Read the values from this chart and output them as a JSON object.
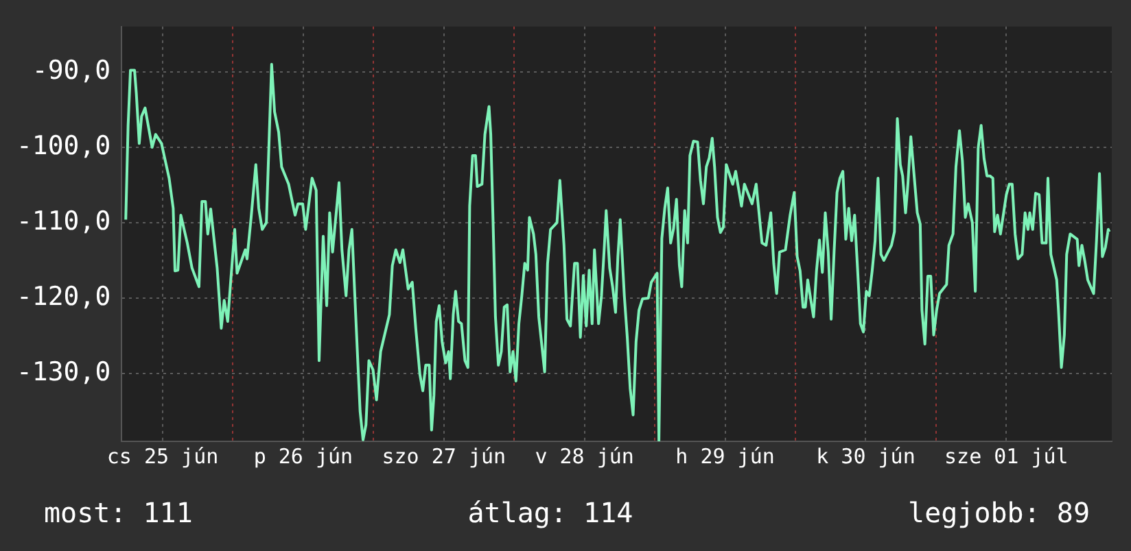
{
  "chart_data": {
    "type": "line",
    "xlim": [
      "--06-25T05:00",
      "--07-02T06:00"
    ],
    "ylim": [
      -139,
      -84
    ],
    "xticks": [
      {
        "value": "--06-25T12:00",
        "label": "cs 25 jún"
      },
      {
        "value": "--06-26",
        "label": null
      },
      {
        "value": "--06-26T12:00",
        "label": "p 26 jún"
      },
      {
        "value": "--06-27",
        "label": null
      },
      {
        "value": "--06-27T12:00",
        "label": "szo 27 jún"
      },
      {
        "value": "--06-28",
        "label": null
      },
      {
        "value": "--06-28T12:00",
        "label": "v 28 jún"
      },
      {
        "value": "--06-29",
        "label": null
      },
      {
        "value": "--06-29T12:00",
        "label": "h 29 jún"
      },
      {
        "value": "--06-30",
        "label": null
      },
      {
        "value": "--06-30T12:00",
        "label": "k 30 jún"
      },
      {
        "value": "--07-01",
        "label": null
      },
      {
        "value": "--07-01T12:00",
        "label": "sze 01 júl"
      }
    ],
    "yticks": [
      {
        "value": -130,
        "label": "-130,0"
      },
      {
        "value": -120,
        "label": "-120,0"
      },
      {
        "value": -110,
        "label": "-110,0"
      },
      {
        "value": -100,
        "label": "-100,0"
      },
      {
        "value": -90,
        "label": "-90,0"
      }
    ],
    "grid": true,
    "legend": false,
    "marker": "none",
    "line_style": "solid",
    "annotations": [
      "most: 111",
      "átlag: 114",
      "legjobb: 89"
    ],
    "series": [
      {
        "color": "#7ef2b8",
        "x": [
          "--06-25T05:42",
          "--06-25T06:06",
          "--06-25T06:30",
          "--06-25T07:12",
          "--06-25T07:30",
          "--06-25T08:00",
          "--06-25T08:24",
          "--06-25T09:00",
          "--06-25T10:12",
          "--06-25T10:48",
          "--06-25T11:48",
          "--06-25T13:06",
          "--06-25T13:48",
          "--06-25T14:06",
          "--06-25T14:36",
          "--06-25T15:06",
          "--06-25T16:12",
          "--06-25T17:00",
          "--06-25T18:12",
          "--06-25T18:42",
          "--06-25T19:18",
          "--06-25T19:42",
          "--06-25T20:12",
          "--06-25T21:18",
          "--06-25T22:00",
          "--06-25T22:30",
          "--06-25T23:06",
          "--06-25T23:36",
          "--06-26T00:18",
          "--06-26T00:42",
          "--06-26T02:06",
          "--06-26T02:24",
          "--06-26T03:06",
          "--06-26T03:54",
          "--06-26T04:24",
          "--06-26T05:00",
          "--06-26T05:42",
          "--06-26T06:12",
          "--06-26T06:36",
          "--06-26T07:06",
          "--06-26T07:48",
          "--06-26T08:18",
          "--06-26T09:30",
          "--06-26T10:36",
          "--06-26T11:06",
          "--06-26T11:54",
          "--06-26T12:24",
          "--06-26T13:30",
          "--06-26T14:12",
          "--06-26T14:42",
          "--06-26T15:24",
          "--06-26T16:00",
          "--06-26T16:30",
          "--06-26T17:00",
          "--06-26T18:06",
          "--06-26T18:36",
          "--06-26T19:18",
          "--06-26T19:48",
          "--06-26T20:18",
          "--06-26T20:48",
          "--06-26T21:18",
          "--06-26T21:42",
          "--06-26T22:12",
          "--06-26T22:42",
          "--06-26T23:12",
          "--06-26T23:54",
          "--06-27T00:30",
          "--06-27T01:12",
          "--06-27T02:42",
          "--06-27T03:12",
          "--06-27T03:48",
          "--06-27T04:30",
          "--06-27T05:00",
          "--06-27T05:54",
          "--06-27T06:36",
          "--06-27T07:12",
          "--06-27T07:54",
          "--06-27T08:24",
          "--06-27T08:54",
          "--06-27T09:30",
          "--06-27T09:54",
          "--06-27T10:18",
          "--06-27T10:42",
          "--06-27T11:12",
          "--06-27T11:42",
          "--06-27T12:18",
          "--06-27T12:48",
          "--06-27T13:06",
          "--06-27T13:36",
          "--06-27T14:00",
          "--06-27T14:30",
          "--06-27T15:00",
          "--06-27T15:36",
          "--06-27T16:06",
          "--06-27T16:24",
          "--06-27T16:54",
          "--06-27T17:24",
          "--06-27T17:42",
          "--06-27T18:30",
          "--06-27T19:00",
          "--06-27T19:42",
          "--06-27T20:00",
          "--06-27T20:24",
          "--06-27T20:48",
          "--06-27T21:18",
          "--06-27T21:48",
          "--06-27T22:18",
          "--06-27T22:48",
          "--06-27T23:18",
          "--06-27T23:48",
          "--06-28T00:18",
          "--06-28T00:48",
          "--06-28T01:18",
          "--06-28T01:48",
          "--06-28T02:18",
          "--06-28T02:36",
          "--06-28T03:18",
          "--06-28T03:42",
          "--06-28T04:12",
          "--06-28T05:12",
          "--06-28T05:42",
          "--06-28T06:12",
          "--06-28T07:18",
          "--06-28T07:48",
          "--06-28T08:30",
          "--06-28T09:00",
          "--06-28T09:36",
          "--06-28T10:18",
          "--06-28T10:48",
          "--06-28T11:18",
          "--06-28T11:48",
          "--06-28T12:18",
          "--06-28T12:48",
          "--06-28T13:18",
          "--06-28T13:42",
          "--06-28T14:24",
          "--06-28T14:54",
          "--06-28T15:24",
          "--06-28T15:42",
          "--06-28T16:18",
          "--06-28T16:48",
          "--06-28T17:18",
          "--06-28T17:42",
          "--06-28T18:06",
          "--06-28T18:48",
          "--06-28T19:18",
          "--06-28T19:48",
          "--06-28T20:18",
          "--06-28T20:48",
          "--06-28T21:18",
          "--06-28T21:54",
          "--06-28T22:54",
          "--06-28T23:24",
          "--06-29T00:24",
          "--06-29T00:42",
          "--06-29T01:12",
          "--06-29T01:42",
          "--06-29T02:12",
          "--06-29T02:42",
          "--06-29T03:12",
          "--06-29T03:42",
          "--06-29T04:12",
          "--06-29T04:36",
          "--06-29T05:06",
          "--06-29T05:36",
          "--06-29T06:00",
          "--06-29T06:36",
          "--06-29T07:18",
          "--06-29T07:48",
          "--06-29T08:18",
          "--06-29T08:48",
          "--06-29T09:18",
          "--06-29T09:48",
          "--06-29T10:12",
          "--06-29T10:42",
          "--06-29T11:12",
          "--06-29T11:42",
          "--06-29T12:12",
          "--06-29T13:18",
          "--06-29T13:48",
          "--06-29T14:48",
          "--06-29T15:18",
          "--06-29T16:36",
          "--06-29T17:18",
          "--06-29T18:18",
          "--06-29T19:00",
          "--06-29T19:48",
          "--06-29T20:18",
          "--06-29T20:48",
          "--06-29T21:18",
          "--06-29T22:18",
          "--06-29T23:06",
          "--06-29T23:48",
          "--06-30T00:18",
          "--06-30T00:48",
          "--06-30T01:18",
          "--06-30T01:42",
          "--06-30T02:06",
          "--06-30T02:36",
          "--06-30T03:06",
          "--06-30T03:36",
          "--06-30T04:06",
          "--06-30T04:36",
          "--06-30T05:06",
          "--06-30T05:36",
          "--06-30T06:06",
          "--06-30T06:36",
          "--06-30T07:06",
          "--06-30T07:36",
          "--06-30T08:06",
          "--06-30T08:36",
          "--06-30T09:06",
          "--06-30T09:36",
          "--06-30T10:06",
          "--06-30T10:36",
          "--06-30T11:06",
          "--06-30T11:36",
          "--06-30T12:06",
          "--06-30T12:36",
          "--06-30T13:06",
          "--06-30T13:36",
          "--06-30T14:06",
          "--06-30T14:36",
          "--06-30T15:06",
          "--06-30T16:24",
          "--06-30T16:54",
          "--06-30T17:24",
          "--06-30T17:54",
          "--06-30T18:18",
          "--06-30T18:48",
          "--06-30T19:12",
          "--06-30T19:42",
          "--06-30T20:18",
          "--06-30T20:48",
          "--06-30T21:18",
          "--06-30T21:36",
          "--06-30T22:06",
          "--06-30T22:36",
          "--06-30T23:06",
          "--06-30T23:36",
          "--07-01T00:06",
          "--07-01T00:36",
          "--07-01T01:48",
          "--07-01T02:12",
          "--07-01T02:54",
          "--07-01T03:24",
          "--07-01T04:00",
          "--07-01T04:30",
          "--07-01T05:00",
          "--07-01T05:30",
          "--07-01T06:12",
          "--07-01T06:42",
          "--07-01T07:12",
          "--07-01T07:42",
          "--07-01T08:12",
          "--07-01T08:42",
          "--07-01T09:12",
          "--07-01T09:42",
          "--07-01T10:00",
          "--07-01T10:30",
          "--07-01T11:00",
          "--07-01T12:00",
          "--07-01T12:30",
          "--07-01T13:00",
          "--07-01T13:30",
          "--07-01T14:00",
          "--07-01T14:42",
          "--07-01T15:12",
          "--07-01T15:42",
          "--07-01T16:00",
          "--07-01T16:30",
          "--07-01T17:00",
          "--07-01T17:36",
          "--07-01T18:06",
          "--07-01T18:48",
          "--07-01T19:06",
          "--07-01T19:36",
          "--07-01T20:36",
          "--07-01T20:54",
          "--07-01T21:24",
          "--07-01T21:54",
          "--07-01T22:18",
          "--07-01T22:54",
          "--07-02T00:06",
          "--07-02T00:24",
          "--07-02T00:54",
          "--07-02T01:24",
          "--07-02T01:54",
          "--07-02T02:54",
          "--07-02T03:24",
          "--07-02T03:54",
          "--07-02T04:24",
          "--07-02T04:54",
          "--07-02T05:24",
          "--07-02T05:36"
        ],
        "values": [
          -109.6,
          -97.1,
          -89.8,
          -89.8,
          -92.8,
          -99.5,
          -95.9,
          -94.8,
          -100,
          -98.3,
          -99.5,
          -104.1,
          -108.1,
          -116.4,
          -116.3,
          -109,
          -112.7,
          -116,
          -118.5,
          -107.2,
          -107.2,
          -111.5,
          -108.2,
          -116,
          -124,
          -120.3,
          -123.1,
          -117.9,
          -110.9,
          -116.7,
          -113.6,
          -114.8,
          -109.3,
          -102.3,
          -108.1,
          -110.9,
          -110,
          -98.3,
          -89,
          -95.3,
          -98,
          -102.6,
          -104.9,
          -109,
          -107.5,
          -107.5,
          -110.9,
          -104.1,
          -105.7,
          -128.3,
          -111.8,
          -121,
          -108.7,
          -113.9,
          -104.7,
          -113.6,
          -119.7,
          -113.6,
          -110.9,
          -119.7,
          -128.3,
          -135,
          -138.8,
          -136.8,
          -128.3,
          -129.5,
          -133.5,
          -127.1,
          -122.2,
          -115.7,
          -113.6,
          -115.3,
          -113.6,
          -118.8,
          -117.9,
          -124,
          -130.1,
          -132.3,
          -128.9,
          -128.9,
          -137.5,
          -132.9,
          -123.1,
          -121,
          -125.8,
          -128.6,
          -127.1,
          -130.7,
          -122.2,
          -119.1,
          -123.1,
          -123.4,
          -128.3,
          -129.2,
          -107.8,
          -101.1,
          -101.1,
          -105.2,
          -104.9,
          -98.3,
          -94.6,
          -98.3,
          -110,
          -122.5,
          -128.9,
          -127.1,
          -121.2,
          -120.9,
          -129.8,
          -127.1,
          -131,
          -123.4,
          -119.7,
          -115.4,
          -116.3,
          -109.3,
          -111.5,
          -114.2,
          -122.5,
          -129.8,
          -115.4,
          -110.9,
          -110,
          -104.4,
          -113,
          -122.8,
          -123.7,
          -115.4,
          -115.4,
          -125.2,
          -117,
          -123.7,
          -116.3,
          -123.4,
          -113.6,
          -123.4,
          -119.7,
          -113,
          -108.4,
          -116,
          -118.5,
          -121.9,
          -114.5,
          -109.6,
          -119.7,
          -125.2,
          -132,
          -135.5,
          -125.8,
          -121.6,
          -120.1,
          -120,
          -117.9,
          -116.7,
          -138.9,
          -112.1,
          -108.1,
          -105.4,
          -112.7,
          -110.8,
          -106.9,
          -115.7,
          -118.5,
          -108.4,
          -112.7,
          -101.1,
          -99.2,
          -99.3,
          -104.4,
          -107.5,
          -102.6,
          -101.4,
          -98.8,
          -102.6,
          -109.3,
          -111.3,
          -110.6,
          -102.3,
          -104.9,
          -103.2,
          -107.8,
          -104.9,
          -107.5,
          -104.9,
          -112.7,
          -113,
          -108.7,
          -115.4,
          -119.4,
          -113.9,
          -113.6,
          -109,
          -106,
          -114.5,
          -116.4,
          -121.2,
          -121.2,
          -117.6,
          -120.1,
          -122.5,
          -116.4,
          -112.3,
          -116.6,
          -108.7,
          -113.9,
          -122.8,
          -113.9,
          -106,
          -104.1,
          -103.2,
          -112.2,
          -108.1,
          -112.4,
          -109,
          -116,
          -123.4,
          -124.5,
          -119.1,
          -119.7,
          -116.4,
          -112.4,
          -104.1,
          -114.2,
          -115,
          -113,
          -111.2,
          -96.2,
          -102.3,
          -103.8,
          -108.7,
          -104.9,
          -98.6,
          -104.1,
          -108.7,
          -110.2,
          -121.6,
          -126.1,
          -117.1,
          -117.1,
          -124.9,
          -121.6,
          -119.4,
          -118.2,
          -113,
          -111.5,
          -102.6,
          -97.8,
          -101.8,
          -109.3,
          -107.5,
          -110,
          -119.1,
          -100.1,
          -97.1,
          -101.5,
          -103.8,
          -103.8,
          -104.1,
          -111.2,
          -109,
          -111.5,
          -106.3,
          -104.9,
          -104.9,
          -111.5,
          -114.8,
          -114.2,
          -108.7,
          -110.9,
          -108.7,
          -110.9,
          -106.1,
          -106.3,
          -112.7,
          -112.7,
          -104.1,
          -114.2,
          -117.6,
          -121.6,
          -129.2,
          -124.9,
          -114.2,
          -111.5,
          -112.2,
          -115.7,
          -113,
          -115.1,
          -117.6,
          -119.4,
          -112.3,
          -103.5,
          -114.5,
          -113.3,
          -110.9,
          -111.2
        ]
      }
    ]
  }
}
